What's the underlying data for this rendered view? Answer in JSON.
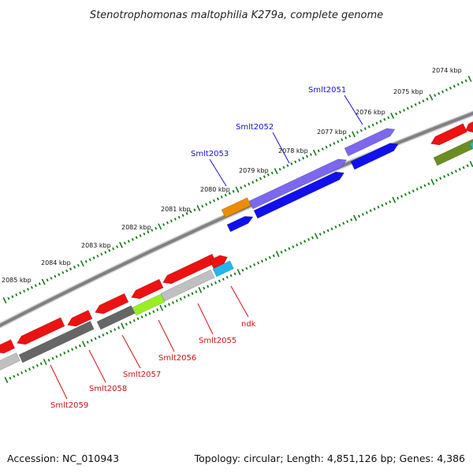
{
  "title": "Stenotrophomonas maltophilia K279a, complete genome",
  "footer": {
    "accession": "Accession: NC_010943",
    "topology": "Topology: circular; Length: 4,851,126 bp; Genes: 4,386"
  },
  "ticks": [
    "2074 kbp",
    "2075 kbp",
    "2076 kbp",
    "2077 kbp",
    "2078 kbp",
    "2079 kbp",
    "2080 kbp",
    "2081 kbp",
    "2082 kbp",
    "2083 kbp",
    "2084 kbp",
    "2085 kbp"
  ],
  "top_genes": [
    "Smlt2051",
    "Smlt2052",
    "Smlt2053"
  ],
  "bottom_genes": [
    "ndk",
    "Smlt2055",
    "Smlt2056",
    "Smlt2057",
    "Smlt2058",
    "Smlt2059"
  ],
  "colors": {
    "backbone": "#8a8a8a",
    "scale_dots": "#1a7a1a",
    "label_blue": "#1414c8",
    "label_red": "#c81414",
    "gene_red": "#ee1111",
    "gene_purple": "#7b68ee",
    "gene_blue": "#1010ee",
    "gene_orange": "#ee8c00",
    "gene_cyan": "#20b8ee",
    "gene_lightgreen": "#99ee22",
    "gene_darkgray": "#666666",
    "gene_lightgray": "#c0c0c0",
    "gene_olive": "#6b8e23"
  }
}
